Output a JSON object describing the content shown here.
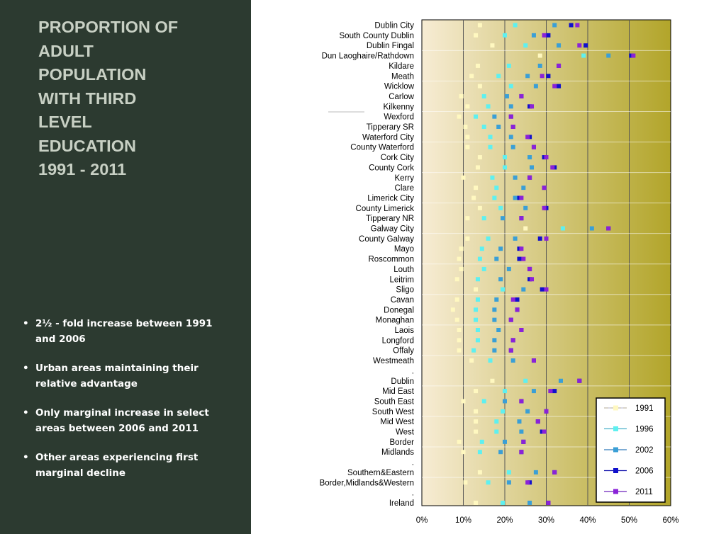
{
  "title": "PROPORTION OF ADULT POPULATION WITH THIRD LEVEL EDUCATION 1991 - 2011",
  "bullets": [
    "2½ - fold increase between 1991 and 2006",
    "Urban areas maintaining their relative advantage",
    "Only marginal increase in select areas between 2006 and 2011",
    "Other areas experiencing first marginal decline"
  ],
  "colors": {
    "panel_bg": "#2c3a30",
    "title_text": "#c8d0c4",
    "bullet_text": "#ffffff",
    "plot_bg_light": "#f7ecd4",
    "plot_bg_dark": "#b2a52a"
  },
  "chart_data": {
    "type": "scatter",
    "orientation": "horizontal-dot-plot",
    "xlim": [
      0,
      60
    ],
    "x_ticks": [
      "0%",
      "10%",
      "20%",
      "30%",
      "40%",
      "50%",
      "60%"
    ],
    "grid": "vertical",
    "legend_position": "bottom-right",
    "series": [
      {
        "name": "1991",
        "color": "#fff8c0"
      },
      {
        "name": "1996",
        "color": "#5ef0f0"
      },
      {
        "name": "2002",
        "color": "#3a9fd6"
      },
      {
        "name": "2006",
        "color": "#1010cc"
      },
      {
        "name": "2011",
        "color": "#8a22d8"
      }
    ],
    "rows": [
      {
        "label": "Dublin City",
        "values": [
          14,
          22.5,
          32,
          36,
          37.5
        ]
      },
      {
        "label": "South County Dublin",
        "values": [
          13,
          20,
          27,
          30.5,
          29.5
        ]
      },
      {
        "label": "Dublin Fingal",
        "values": [
          17,
          25,
          33,
          39.5,
          38
        ]
      },
      {
        "label": "Dun Laoghaire/Rathdown",
        "values": [
          28.5,
          39,
          45,
          50.5,
          51
        ]
      },
      {
        "label": "Kildare",
        "values": [
          13.5,
          21,
          28.5,
          33,
          33
        ]
      },
      {
        "label": "Meath",
        "values": [
          12,
          18.5,
          25.5,
          30.5,
          29
        ]
      },
      {
        "label": "Wicklow",
        "values": [
          14,
          21.5,
          27.5,
          33,
          32
        ]
      },
      {
        "label": "Carlow",
        "values": [
          9.5,
          15,
          20.5,
          24,
          24
        ]
      },
      {
        "label": "Kilkenny",
        "values": [
          11,
          16,
          21.5,
          26,
          26.5
        ]
      },
      {
        "label": "Wexford",
        "values": [
          9,
          13,
          17.5,
          21.5,
          21.5
        ]
      },
      {
        "label": "Tipperary SR",
        "values": [
          10.5,
          15,
          18.5,
          22,
          22
        ]
      },
      {
        "label": "Waterford City",
        "values": [
          11,
          16.5,
          21.5,
          26,
          25.5
        ]
      },
      {
        "label": "County Waterford",
        "values": [
          11,
          16.5,
          22,
          27,
          27
        ]
      },
      {
        "label": "Cork City",
        "values": [
          14,
          20,
          26,
          29.5,
          30
        ]
      },
      {
        "label": "County Cork",
        "values": [
          13.5,
          20,
          26.5,
          32,
          31.5
        ]
      },
      {
        "label": "Kerry",
        "values": [
          10,
          17,
          22.5,
          26,
          26
        ]
      },
      {
        "label": "Clare",
        "values": [
          13,
          18,
          24.5,
          29.5,
          29.5
        ]
      },
      {
        "label": "Limerick City",
        "values": [
          12.5,
          17.5,
          22.5,
          23.5,
          24
        ]
      },
      {
        "label": "County Limerick",
        "values": [
          14,
          19,
          25,
          30,
          29.5
        ]
      },
      {
        "label": "Tipperary NR",
        "values": [
          11,
          15,
          19.5,
          24,
          24
        ]
      },
      {
        "label": "Galway City",
        "values": [
          25,
          34,
          41,
          45,
          45
        ]
      },
      {
        "label": "County Galway",
        "values": [
          11,
          16,
          22.5,
          28.5,
          30
        ]
      },
      {
        "label": "Mayo",
        "values": [
          9.5,
          14.5,
          19,
          23.5,
          24
        ]
      },
      {
        "label": "Roscommon",
        "values": [
          9,
          14,
          18,
          23.5,
          24.5
        ]
      },
      {
        "label": "Louth",
        "values": [
          9.5,
          15,
          21,
          26,
          26
        ]
      },
      {
        "label": "Leitrim",
        "values": [
          8.5,
          13.5,
          19,
          26,
          26.5
        ]
      },
      {
        "label": "Sligo",
        "values": [
          13,
          19.5,
          24.5,
          29,
          30
        ]
      },
      {
        "label": "Cavan",
        "values": [
          8.5,
          13.5,
          18,
          23,
          22
        ]
      },
      {
        "label": "Donegal",
        "values": [
          7.5,
          13,
          17.5,
          23,
          23
        ]
      },
      {
        "label": "Monaghan",
        "values": [
          8.5,
          13,
          17.5,
          21.5,
          21.5
        ]
      },
      {
        "label": "Laois",
        "values": [
          9,
          13.5,
          18.5,
          24,
          24
        ]
      },
      {
        "label": "Longford",
        "values": [
          9,
          13.5,
          17.5,
          22,
          22
        ]
      },
      {
        "label": "Offaly",
        "values": [
          9,
          12.5,
          17.5,
          21.5,
          21.5
        ]
      },
      {
        "label": "Westmeath",
        "values": [
          12,
          16.5,
          22,
          27,
          27
        ]
      },
      {
        "label": ".",
        "values": null
      },
      {
        "label": "Dublin",
        "values": [
          17,
          25,
          33.5,
          38,
          38
        ]
      },
      {
        "label": "Mid East",
        "values": [
          13,
          20,
          27,
          32,
          31
        ]
      },
      {
        "label": "South East",
        "values": [
          10,
          15,
          20,
          24,
          24
        ]
      },
      {
        "label": "South West",
        "values": [
          13,
          19.5,
          25.5,
          30,
          30
        ]
      },
      {
        "label": "Mid West",
        "values": [
          13,
          18,
          23.5,
          28,
          28
        ]
      },
      {
        "label": "West",
        "values": [
          13,
          18,
          24,
          29,
          29.5
        ]
      },
      {
        "label": "Border",
        "values": [
          9,
          14.5,
          20,
          24.5,
          24.5
        ]
      },
      {
        "label": "Midlands",
        "values": [
          10,
          14,
          19,
          24,
          24
        ]
      },
      {
        "label": ".",
        "values": null
      },
      {
        "label": "Southern&Eastern",
        "values": [
          14,
          21,
          27.5,
          32,
          32
        ]
      },
      {
        "label": "Border,Midlands&Western",
        "values": [
          10.5,
          16,
          21,
          26,
          25.5
        ]
      },
      {
        "label": ".",
        "values": null
      },
      {
        "label": "Ireland",
        "values": [
          13,
          19.5,
          26,
          30.5,
          30.5
        ]
      }
    ]
  }
}
